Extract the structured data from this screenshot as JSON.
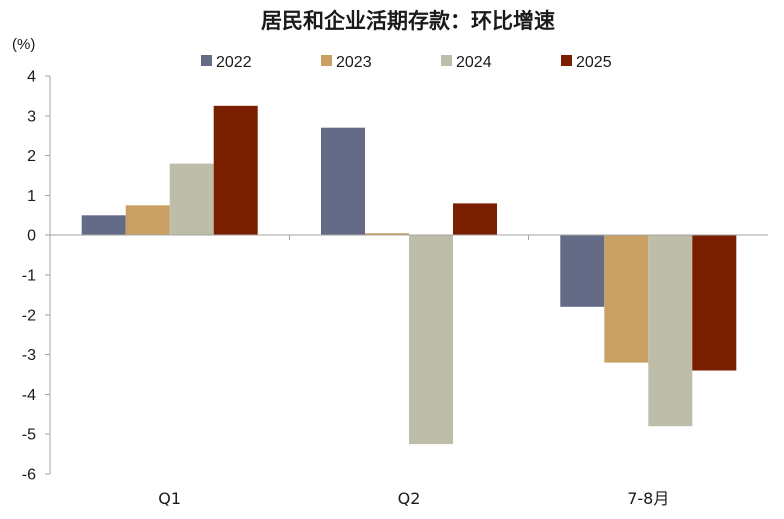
{
  "chart_data": {
    "type": "bar",
    "title": "居民和企业活期存款：环比增速",
    "ylabel": "(%)",
    "xlabel": "",
    "categories": [
      "Q1",
      "Q2",
      "7-8月"
    ],
    "series": [
      {
        "name": "2022",
        "color": "#636B86",
        "values": [
          0.5,
          2.7,
          -1.8
        ]
      },
      {
        "name": "2023",
        "color": "#C9A063",
        "values": [
          0.75,
          0.05,
          -3.2
        ]
      },
      {
        "name": "2024",
        "color": "#BDBDA9",
        "values": [
          1.8,
          -5.25,
          -4.8
        ]
      },
      {
        "name": "2025",
        "color": "#7A1E00",
        "values": [
          3.25,
          0.8,
          -3.4
        ]
      }
    ],
    "ylim": [
      -6,
      4
    ],
    "yticks": [
      4,
      3,
      2,
      1,
      0,
      -1,
      -2,
      -3,
      -4,
      -5,
      -6
    ],
    "grid": false,
    "legend": "top"
  }
}
